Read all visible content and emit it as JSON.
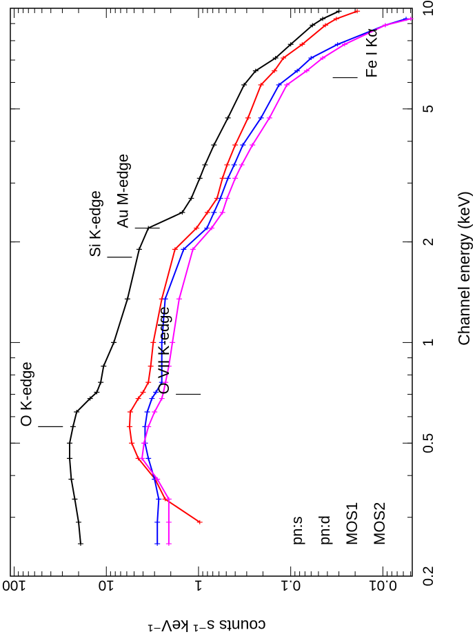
{
  "chart_data": {
    "type": "line",
    "xlabel": "Channel energy (keV)",
    "ylabel": "counts s⁻¹ keV⁻¹",
    "xscale": "log",
    "yscale": "log",
    "xlim": [
      0.2,
      10
    ],
    "ylim": [
      0.0048,
      110
    ],
    "xticks": [
      0.2,
      0.5,
      1,
      2,
      5,
      10
    ],
    "yticks": [
      0.01,
      0.1,
      1,
      10,
      100
    ],
    "legend": "lower left",
    "x": [
      0.25,
      0.29,
      0.34,
      0.39,
      0.45,
      0.5,
      0.56,
      0.62,
      0.68,
      0.71,
      0.76,
      0.85,
      1.0,
      1.35,
      1.9,
      2.2,
      2.45,
      2.7,
      3.1,
      3.4,
      3.9,
      4.7,
      5.9,
      6.5,
      7.1,
      7.8,
      8.9,
      9.3,
      9.8
    ],
    "series": [
      {
        "name": "pn:s",
        "color": "#000000",
        "values": [
          19,
          20,
          22,
          24,
          25,
          25,
          23,
          21,
          15,
          12.7,
          11.5,
          10.7,
          8.3,
          5.9,
          4.4,
          3.5,
          1.5,
          1.2,
          0.97,
          0.85,
          0.68,
          0.48,
          0.32,
          0.24,
          0.146,
          0.1,
          0.058,
          0.045,
          0.03
        ]
      },
      {
        "name": "pn:d",
        "color": "#ff0000",
        "values": [
          null,
          0.97,
          2.3,
          2.95,
          4.5,
          5.3,
          5.6,
          5.5,
          4.5,
          4.0,
          3.5,
          3.3,
          3.1,
          2.5,
          1.8,
          1.05,
          0.8,
          0.63,
          0.55,
          0.49,
          0.4,
          0.29,
          0.21,
          0.15,
          0.12,
          0.075,
          0.042,
          0.032,
          0.019
        ]
      },
      {
        "name": "MOS1",
        "color": "#0000ff",
        "values": [
          2.8,
          2.8,
          2.7,
          3.0,
          3.5,
          3.8,
          3.8,
          3.6,
          3.2,
          2.9,
          2.5,
          2.5,
          2.5,
          2.3,
          1.45,
          0.81,
          0.68,
          0.58,
          0.48,
          0.41,
          0.33,
          0.21,
          0.134,
          0.085,
          0.06,
          0.031,
          0.0094,
          0.0056,
          null
        ]
      },
      {
        "name": "MOS2",
        "color": "#ff00ff",
        "values": [
          2.1,
          2.1,
          2.1,
          2.8,
          4.1,
          3.9,
          3.5,
          3.0,
          2.5,
          2.4,
          2.28,
          2.1,
          1.92,
          1.62,
          1.15,
          0.72,
          0.55,
          0.49,
          0.4,
          0.34,
          0.26,
          0.17,
          0.11,
          0.067,
          0.045,
          0.026,
          0.0094,
          0.005,
          null
        ]
      }
    ],
    "annotations": [
      {
        "text": "O K-edge",
        "x": 0.56,
        "y": 55
      },
      {
        "text": "Si K-edge",
        "x": 1.8,
        "y": 9.8
      },
      {
        "text": "Au M-edge",
        "x": 2.2,
        "y": 4.9
      },
      {
        "text": "O VII K-edge",
        "x": 0.7,
        "y": 1.76
      },
      {
        "text": "Fe I Kα",
        "x": 6.2,
        "y": 0.035
      }
    ]
  }
}
